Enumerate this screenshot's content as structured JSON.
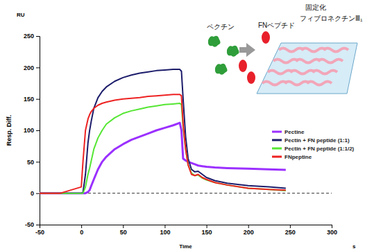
{
  "chart_data": {
    "type": "line",
    "x_label": "Time",
    "y_label": "Resp. Diff.",
    "annotations": [
      "RU",
      "s",
      "ペクチン",
      "FNペプチド",
      "固定化",
      "フィブロネクチンⅢ₁"
    ],
    "x": [
      -50,
      -25,
      0,
      2,
      5,
      8,
      10,
      12,
      15,
      20,
      25,
      30,
      40,
      50,
      60,
      70,
      80,
      90,
      100,
      110,
      118,
      120,
      122,
      125,
      128,
      132,
      136,
      140,
      145,
      150,
      160,
      175,
      200,
      225,
      245
    ],
    "series": [
      {
        "name": "Pectine",
        "color": "#9b30ff",
        "values": [
          0,
          0,
          0,
          0,
          0,
          2,
          5,
          12,
          22,
          38,
          50,
          58,
          70,
          78,
          85,
          90,
          95,
          100,
          104,
          108,
          112,
          100,
          55,
          52,
          50,
          48,
          46,
          44,
          43,
          42,
          41,
          40,
          39,
          38,
          37
        ]
      },
      {
        "name": "Pectin + FN peptide (1:1)",
        "color": "#1c1c6b",
        "values": [
          0,
          0,
          0,
          1,
          30,
          80,
          100,
          115,
          135,
          152,
          162,
          169,
          178,
          184,
          188,
          191,
          193,
          195,
          196,
          197,
          197,
          194,
          150,
          90,
          55,
          38,
          34,
          35,
          30,
          25,
          20,
          16,
          12,
          10,
          8
        ]
      },
      {
        "name": "Pectin + FN peptide (1:1/2)",
        "color": "#55e633",
        "values": [
          0,
          0,
          0,
          0,
          10,
          30,
          40,
          52,
          70,
          88,
          100,
          110,
          120,
          127,
          131,
          134,
          137,
          139,
          141,
          142,
          143,
          141,
          105,
          70,
          45,
          32,
          28,
          29,
          24,
          21,
          17,
          13,
          8,
          6,
          4
        ]
      },
      {
        "name": "FNpeptine",
        "color": "#ee2222",
        "values": [
          0,
          0,
          10,
          50,
          100,
          118,
          125,
          130,
          135,
          140,
          143,
          145,
          148,
          150,
          151,
          152,
          154,
          155,
          156,
          157,
          157,
          155,
          110,
          70,
          45,
          30,
          28,
          30,
          25,
          22,
          17,
          13,
          8,
          6,
          5
        ]
      }
    ],
    "xlim": [
      -50,
      300
    ],
    "xticks": [
      -50,
      0,
      50,
      100,
      150,
      200,
      250,
      300
    ],
    "ylim": [
      -50,
      250
    ],
    "yticks": [
      -50,
      0,
      50,
      100,
      150,
      200,
      250
    ],
    "legend": "right"
  }
}
